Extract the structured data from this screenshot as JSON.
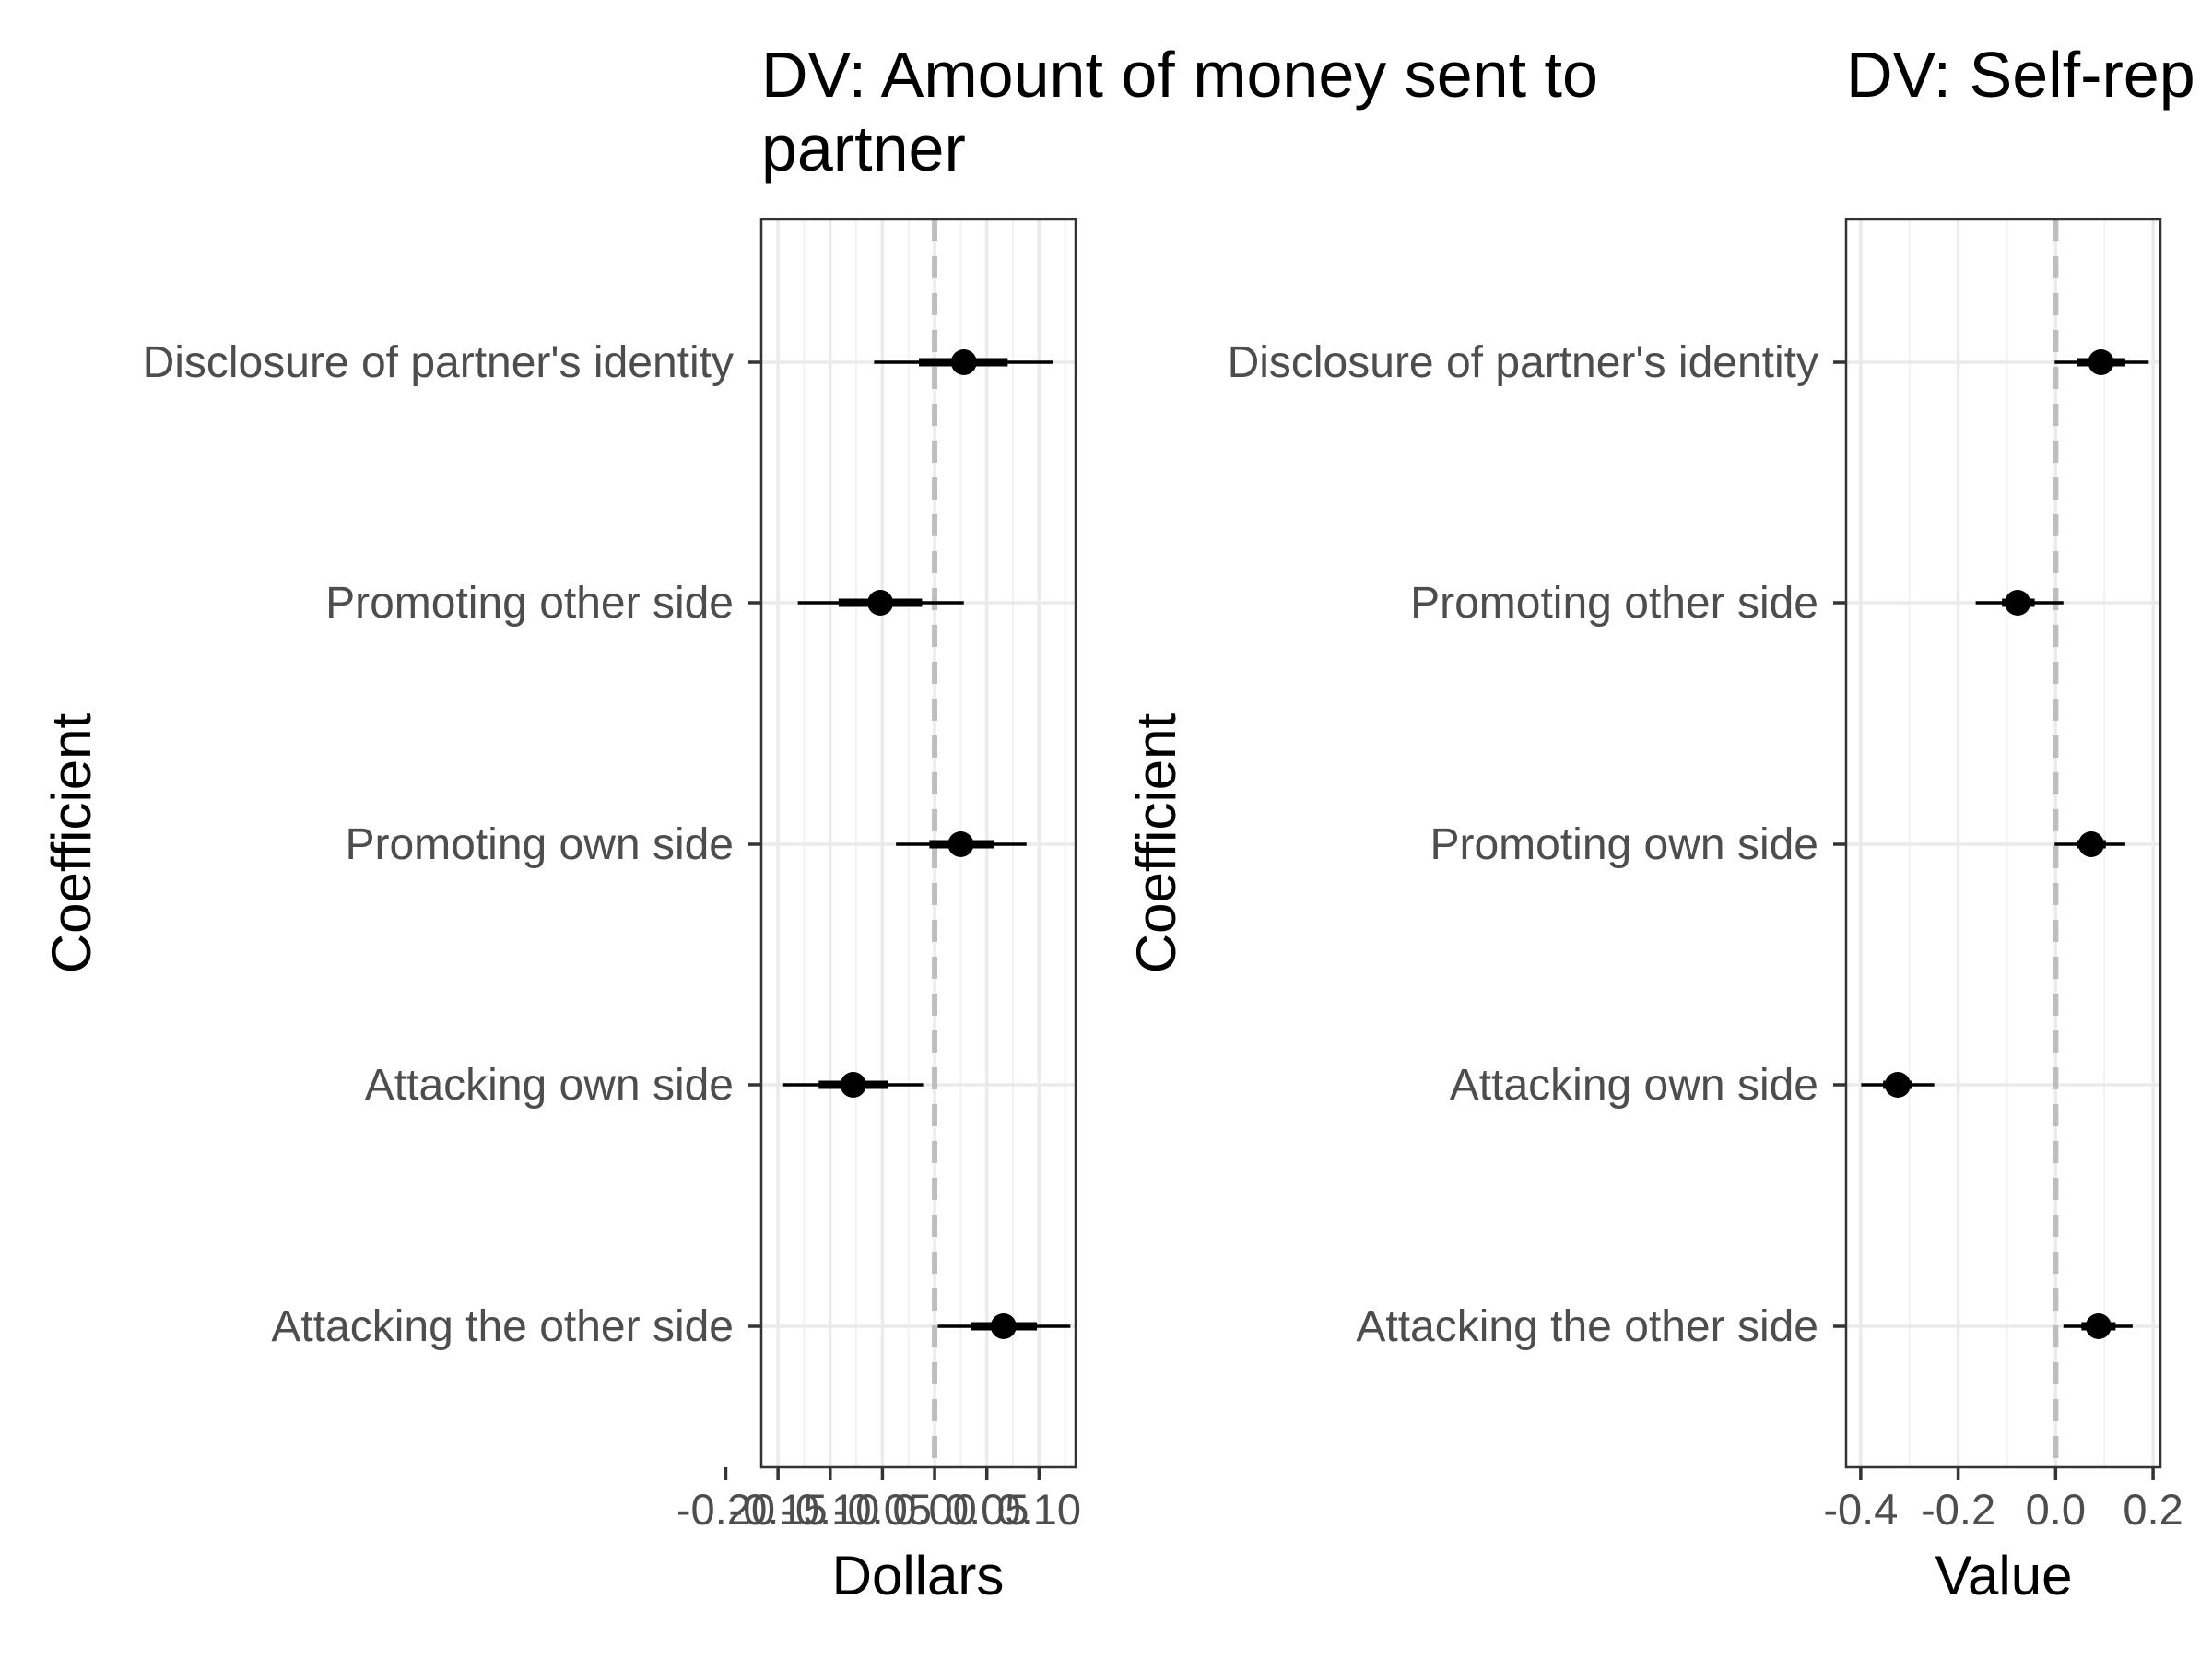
{
  "chart_data": [
    {
      "type": "scatter",
      "subtype": "coefficient-plot",
      "title": "DV: Amount of money sent to partner",
      "xlabel": "Dollars",
      "ylabel": "Coefficient",
      "xlim": [
        -0.166,
        0.135
      ],
      "xticks": [
        -0.2,
        -0.15,
        -0.1,
        -0.05,
        0.0,
        0.05,
        0.1
      ],
      "xtick_labels": [
        "-0.20",
        "-0.15",
        "-0.10",
        "-0.05",
        "0.00",
        "0.05",
        "0.10"
      ],
      "reference_line": 0,
      "grid": true,
      "categories": [
        "Disclosure of partner's identity",
        "Promoting other side",
        "Promoting own side",
        "Attacking own side",
        "Attacking the other side"
      ],
      "estimates": [
        0.028,
        -0.052,
        0.025,
        -0.078,
        0.066
      ],
      "inner_ci": [
        [
          -0.015,
          0.07
        ],
        [
          -0.092,
          -0.012
        ],
        [
          -0.005,
          0.057
        ],
        [
          -0.111,
          -0.045
        ],
        [
          0.035,
          0.098
        ]
      ],
      "outer_ci": [
        [
          -0.058,
          0.113
        ],
        [
          -0.131,
          0.028
        ],
        [
          -0.037,
          0.088
        ],
        [
          -0.145,
          -0.011
        ],
        [
          0.003,
          0.13
        ]
      ]
    },
    {
      "type": "scatter",
      "subtype": "coefficient-plot",
      "title": "DV: Self-rep",
      "xlabel": "Value",
      "ylabel": "Coefficient",
      "xlim": [
        -0.43,
        0.215
      ],
      "xticks": [
        -0.4,
        -0.2,
        0.0,
        0.2
      ],
      "xtick_labels": [
        "-0.4",
        "-0.2",
        "0.0",
        "0.2"
      ],
      "reference_line": 0,
      "grid": true,
      "categories": [
        "Disclosure of partner's identity",
        "Promoting other side",
        "Promoting own side",
        "Attacking own side",
        "Attacking the other side"
      ],
      "estimates": [
        0.093,
        -0.078,
        0.073,
        -0.324,
        0.088
      ],
      "inner_ci": [
        [
          0.043,
          0.143
        ],
        [
          -0.11,
          -0.043
        ],
        [
          0.043,
          0.103
        ],
        [
          -0.354,
          -0.294
        ],
        [
          0.053,
          0.123
        ]
      ],
      "outer_ci": [
        [
          -0.002,
          0.191
        ],
        [
          -0.164,
          0.016
        ],
        [
          -0.002,
          0.143
        ],
        [
          -0.399,
          -0.249
        ],
        [
          0.016,
          0.158
        ]
      ]
    }
  ]
}
